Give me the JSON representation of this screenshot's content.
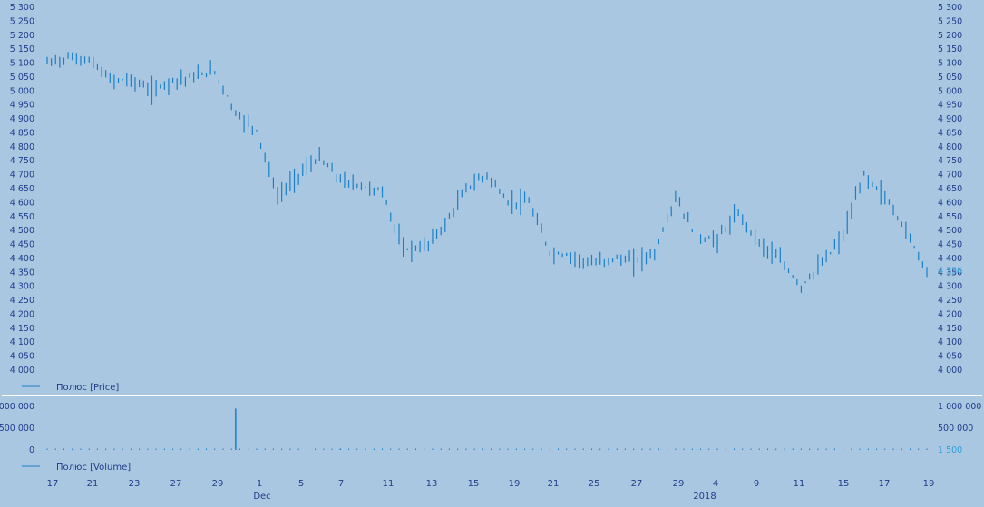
{
  "colors": {
    "background": "#aac7e2",
    "plot_background": "#abc8e2",
    "line": "#1a7fc4",
    "text": "#1f3c8a",
    "accent_text": "#2f9fd8",
    "separator": "#ffffff"
  },
  "chart_data": [
    {
      "type": "line",
      "subtype": "ohlc-bars",
      "title": "",
      "legend": [
        "Полюс [Price]"
      ],
      "legend_position": "bottom-left",
      "ylim": [
        4000,
        5300
      ],
      "yticks": [
        "5 300",
        "5 250",
        "5 200",
        "5 150",
        "5 100",
        "5 050",
        "5 000",
        "4 950",
        "4 900",
        "4 850",
        "4 800",
        "4 750",
        "4 700",
        "4 650",
        "4 600",
        "4 550",
        "4 500",
        "4 450",
        "4 400",
        "4 350",
        "4 300",
        "4 250",
        "4 200",
        "4 150",
        "4 100",
        "4 050",
        "4 000"
      ],
      "last_value_label": "4 356",
      "series": [
        {
          "name": "Полюс [Price]",
          "x": [
            "Nov 17",
            "Nov 20",
            "Nov 21",
            "Nov 22",
            "Nov 23",
            "Nov 24",
            "Nov 27",
            "Nov 28",
            "Nov 29",
            "Nov 30",
            "Dec 1",
            "Dec 4",
            "Dec 5",
            "Dec 6",
            "Dec 7",
            "Dec 8",
            "Dec 11",
            "Dec 12",
            "Dec 13",
            "Dec 14",
            "Dec 15",
            "Dec 18",
            "Dec 19",
            "Dec 20",
            "Dec 21",
            "Dec 22",
            "Dec 25",
            "Dec 26",
            "Dec 27",
            "Dec 28",
            "Dec 29",
            "Jan 3",
            "Jan 4",
            "Jan 5",
            "Jan 9",
            "Jan 10",
            "Jan 11",
            "Jan 12",
            "Jan 15",
            "Jan 16",
            "Jan 17",
            "Jan 18",
            "Jan 19"
          ],
          "values": [
            5100,
            5120,
            5110,
            5040,
            5040,
            5000,
            5040,
            5050,
            5070,
            4920,
            4860,
            4620,
            4700,
            4760,
            4680,
            4660,
            4640,
            4430,
            4440,
            4520,
            4650,
            4700,
            4600,
            4600,
            4420,
            4410,
            4380,
            4400,
            4390,
            4420,
            4620,
            4470,
            4470,
            4560,
            4460,
            4390,
            4300,
            4380,
            4480,
            4700,
            4620,
            4500,
            4356
          ]
        }
      ],
      "ylabel": "",
      "xlabel": ""
    },
    {
      "type": "bar",
      "title": "",
      "legend": [
        "Полюс [Volume]"
      ],
      "legend_position": "bottom-left",
      "ylim": [
        0,
        1000000
      ],
      "yticks_left": [
        "1 000 000",
        "500 000",
        "0"
      ],
      "yticks_right": [
        "1 000 000",
        "500 000"
      ],
      "last_value_label": "1 500",
      "series": [
        {
          "name": "Полюс [Volume]",
          "x": [
            "Nov 30",
            "Dec 7",
            "Jan 3",
            "Jan 19"
          ],
          "values": [
            950000,
            30000,
            5000,
            1500
          ]
        }
      ],
      "ylabel": "",
      "xlabel": ""
    }
  ],
  "x_axis": {
    "tick_labels": [
      "17",
      "21",
      "23",
      "27",
      "29",
      "1",
      "5",
      "7",
      "11",
      "13",
      "15",
      "19",
      "21",
      "25",
      "27",
      "29",
      "4",
      "9",
      "11",
      "15",
      "17",
      "19"
    ],
    "period_labels": [
      "Dec",
      "2018"
    ]
  }
}
